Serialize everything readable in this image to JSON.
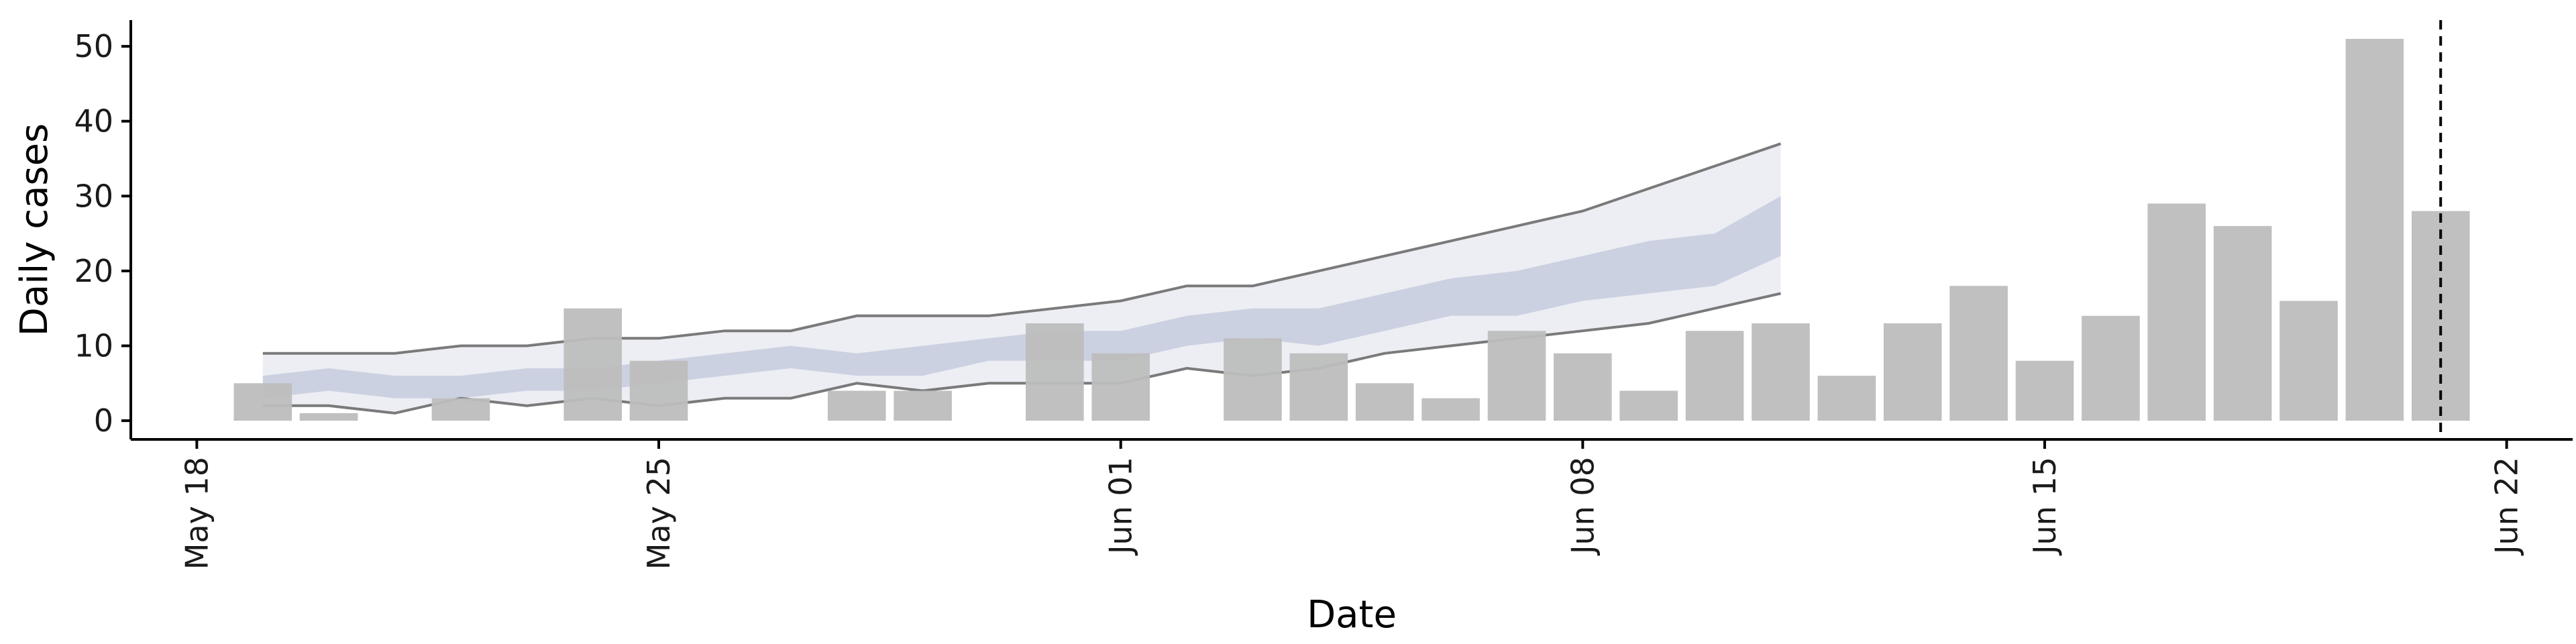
{
  "chart_data": {
    "type": "bar",
    "title": "",
    "xlabel": "Date",
    "ylabel": "Daily cases",
    "x_ticks": [
      {
        "date": "2020-05-18",
        "label": "May 18"
      },
      {
        "date": "2020-05-25",
        "label": "May 25"
      },
      {
        "date": "2020-06-01",
        "label": "Jun 01"
      },
      {
        "date": "2020-06-08",
        "label": "Jun 08"
      },
      {
        "date": "2020-06-15",
        "label": "Jun 15"
      },
      {
        "date": "2020-06-22",
        "label": "Jun 22"
      }
    ],
    "y_ticks": [
      0,
      10,
      20,
      30,
      40,
      50
    ],
    "xlim": [
      "2020-05-17",
      "2020-06-23"
    ],
    "ylim": [
      -2.5,
      53.5
    ],
    "grid": false,
    "reference_line_date": "2020-06-21",
    "bars": {
      "color": "#bdbdbd",
      "dates": [
        "2020-05-19",
        "2020-05-20",
        "2020-05-21",
        "2020-05-22",
        "2020-05-23",
        "2020-05-24",
        "2020-05-25",
        "2020-05-26",
        "2020-05-27",
        "2020-05-28",
        "2020-05-29",
        "2020-05-30",
        "2020-05-31",
        "2020-06-01",
        "2020-06-02",
        "2020-06-03",
        "2020-06-04",
        "2020-06-05",
        "2020-06-06",
        "2020-06-07",
        "2020-06-08",
        "2020-06-09",
        "2020-06-10",
        "2020-06-11",
        "2020-06-12",
        "2020-06-13",
        "2020-06-14",
        "2020-06-15",
        "2020-06-16",
        "2020-06-17",
        "2020-06-18",
        "2020-06-19",
        "2020-06-20",
        "2020-06-21"
      ],
      "values": [
        5,
        1,
        0,
        3,
        0,
        15,
        8,
        0,
        0,
        4,
        4,
        0,
        13,
        9,
        0,
        11,
        9,
        5,
        3,
        12,
        9,
        4,
        12,
        13,
        6,
        13,
        18,
        8,
        14,
        29,
        26,
        16,
        51,
        28
      ]
    },
    "bands": {
      "dates": [
        "2020-05-19",
        "2020-05-20",
        "2020-05-21",
        "2020-05-22",
        "2020-05-23",
        "2020-05-24",
        "2020-05-25",
        "2020-05-26",
        "2020-05-27",
        "2020-05-28",
        "2020-05-29",
        "2020-05-30",
        "2020-05-31",
        "2020-06-01",
        "2020-06-02",
        "2020-06-03",
        "2020-06-04",
        "2020-06-05",
        "2020-06-06",
        "2020-06-07",
        "2020-06-08",
        "2020-06-09",
        "2020-06-10",
        "2020-06-11"
      ],
      "outer_upper": [
        9,
        9,
        9,
        10,
        10,
        11,
        11,
        12,
        12,
        14,
        14,
        14,
        15,
        16,
        18,
        18,
        20,
        22,
        24,
        26,
        28,
        31,
        34,
        37
      ],
      "outer_lower": [
        2,
        2,
        1,
        3,
        2,
        3,
        2,
        3,
        3,
        5,
        4,
        5,
        5,
        5,
        7,
        6,
        7,
        9,
        10,
        11,
        12,
        13,
        15,
        17
      ],
      "inner_upper": [
        6,
        7,
        6,
        6,
        7,
        7,
        8,
        9,
        10,
        9,
        10,
        11,
        12,
        12,
        14,
        15,
        15,
        17,
        19,
        20,
        22,
        24,
        25,
        30
      ],
      "inner_lower": [
        3,
        4,
        3,
        3,
        4,
        4,
        5,
        6,
        7,
        6,
        6,
        8,
        8,
        8,
        10,
        11,
        10,
        12,
        14,
        14,
        16,
        17,
        18,
        22
      ],
      "outer_fill": "#edeef4",
      "inner_fill": "#c3c9dc",
      "outer_line_color": "#7a7a7a"
    }
  }
}
